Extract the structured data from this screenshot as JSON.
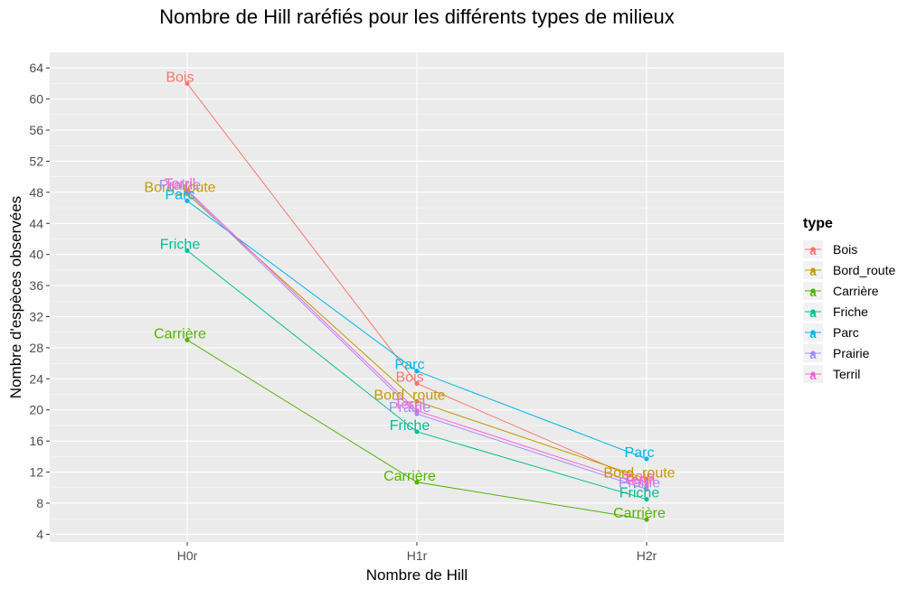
{
  "chart_data": {
    "type": "line",
    "title": "Nombre de Hill raréfiés pour les différents types de milieux",
    "xlabel": "Nombre de Hill",
    "ylabel": "Nombre d'espèces observées",
    "categories": [
      "H0r",
      "H1r",
      "H2r"
    ],
    "ylim": [
      3.0,
      66.0
    ],
    "yticks": [
      4,
      8,
      12,
      16,
      20,
      24,
      28,
      32,
      36,
      40,
      44,
      48,
      52,
      56,
      60,
      64
    ],
    "grid": true,
    "legend": {
      "title": "type",
      "position": "right"
    },
    "series": [
      {
        "name": "Bois",
        "color": "#F8766D",
        "values": [
          62.0,
          23.4,
          10.6
        ]
      },
      {
        "name": "Bord_route",
        "color": "#C49A00",
        "values": [
          47.8,
          21.1,
          11.1
        ]
      },
      {
        "name": "Carrière",
        "color": "#53B400",
        "values": [
          29.0,
          10.7,
          5.9
        ]
      },
      {
        "name": "Friche",
        "color": "#00C094",
        "values": [
          40.5,
          17.2,
          8.5
        ]
      },
      {
        "name": "Parc",
        "color": "#00B6EB",
        "values": [
          46.9,
          25.0,
          13.7
        ]
      },
      {
        "name": "Prairie",
        "color": "#A58AFF",
        "values": [
          48.1,
          19.5,
          9.8
        ]
      },
      {
        "name": "Terril",
        "color": "#FB61D7",
        "values": [
          48.3,
          19.9,
          10.2
        ]
      }
    ]
  }
}
